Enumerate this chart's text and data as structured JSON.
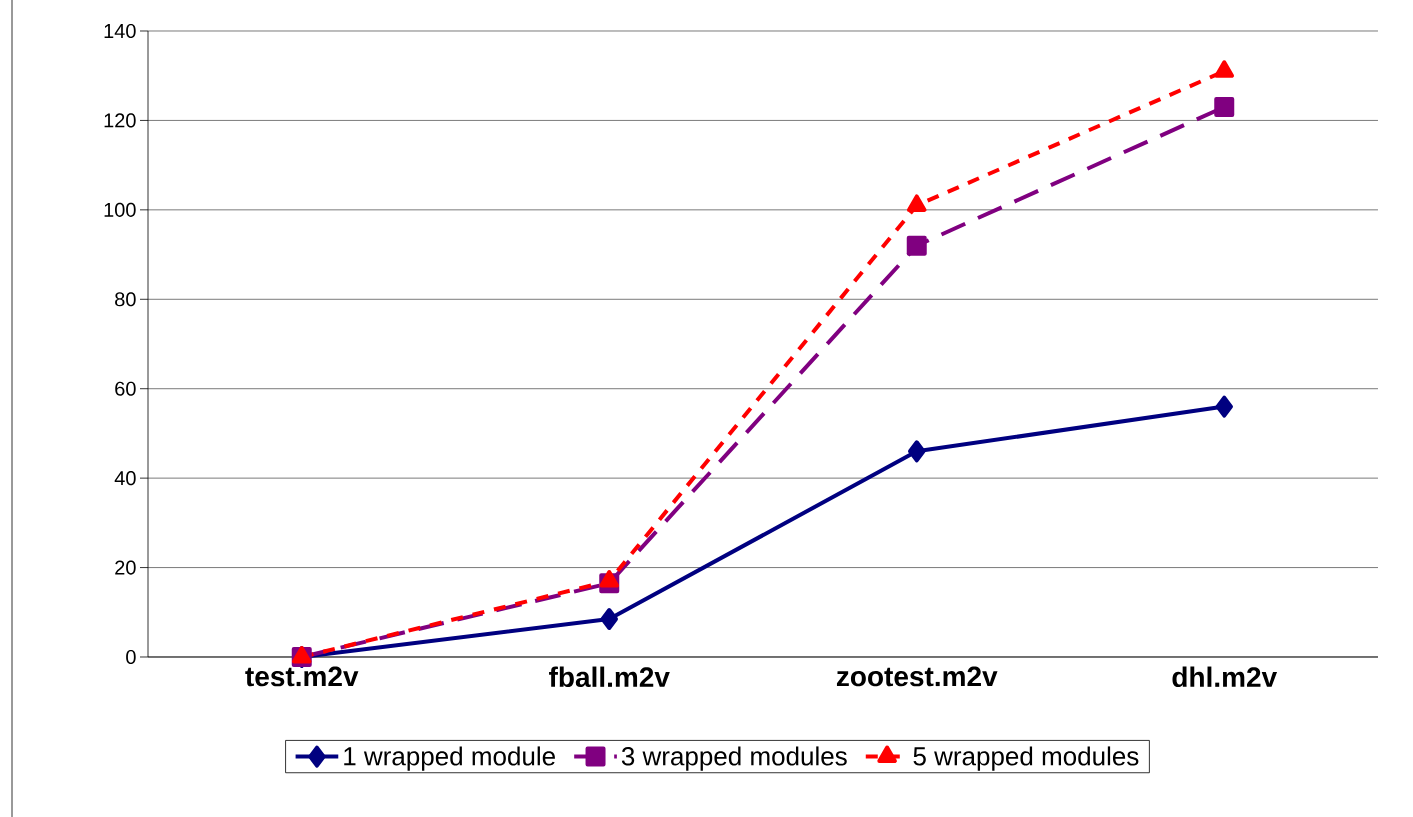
{
  "chart_data": {
    "type": "line",
    "categories": [
      "test.m2v",
      "fball.m2v",
      "zootest.m2v",
      "dhl.m2v"
    ],
    "series": [
      {
        "name": "1 wrapped module",
        "color": "#000080",
        "values": [
          0,
          8.5,
          46,
          56
        ],
        "marker": "diamond",
        "line_style": "solid"
      },
      {
        "name": "3 wrapped modules",
        "color": "#800080",
        "values": [
          0,
          16.5,
          92,
          123
        ],
        "marker": "square",
        "line_style": "dashed"
      },
      {
        "name": "5 wrapped modules",
        "color": "#ff0000",
        "values": [
          0,
          17,
          101,
          131
        ],
        "marker": "triangle",
        "line_style": "dotted"
      }
    ],
    "ylim": [
      0,
      140
    ],
    "yticks": [
      0,
      20,
      40,
      60,
      80,
      100,
      120,
      140
    ],
    "grid": "y",
    "legend": "bottom"
  }
}
